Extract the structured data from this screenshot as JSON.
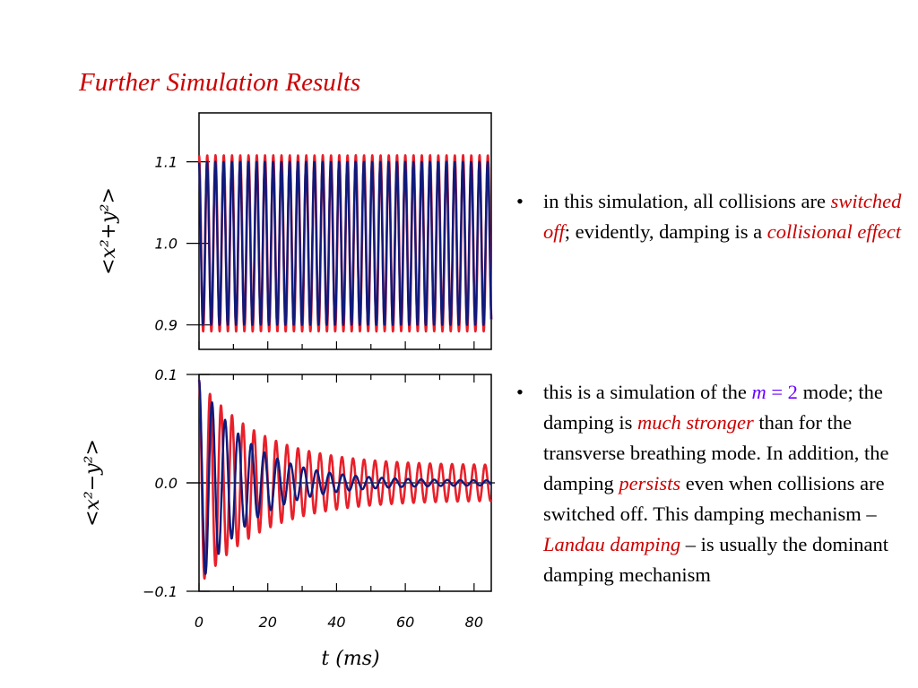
{
  "slide": {
    "title": "Further Simulation Results"
  },
  "bullets": [
    {
      "parts": [
        {
          "text": "in this simulation, all collisions are ",
          "style": "plain"
        },
        {
          "text": "switched off",
          "style": "red-italic"
        },
        {
          "text": "; evidently, damping is a ",
          "style": "plain"
        },
        {
          "text": "collisional effect",
          "style": "red-italic"
        }
      ]
    },
    {
      "parts": [
        {
          "text": "this is a simulation of the ",
          "style": "plain"
        },
        {
          "text": "m",
          "style": "purple-italic"
        },
        {
          "text": " = 2",
          "style": "purple"
        },
        {
          "text": " mode; the damping is ",
          "style": "plain"
        },
        {
          "text": "much stronger",
          "style": "red-italic"
        },
        {
          "text": " than for the transverse breathing mode. In addition, the damping ",
          "style": "plain"
        },
        {
          "text": "persists",
          "style": "red-italic"
        },
        {
          "text": " even when collisions are switched off. This damping mechanism – ",
          "style": "plain"
        },
        {
          "text": "Landau damping",
          "style": "red-italic"
        },
        {
          "text": " – is usually the dominant damping mechanism",
          "style": "plain"
        }
      ]
    }
  ],
  "colors": {
    "title": "#cc0000",
    "emphasis": "#cc0000",
    "mode": "#6a00ff",
    "series_red": "#e8202a",
    "series_blue": "#101a7a"
  },
  "chart_data": [
    {
      "type": "line",
      "title": "",
      "xlabel": "",
      "ylabel": "<x²+y²>",
      "xlim": [
        0,
        85
      ],
      "ylim": [
        0.87,
        1.16
      ],
      "yticks": [
        0.9,
        1.0,
        1.1
      ],
      "ytick_labels": [
        "0.9",
        "1.0",
        "1.1"
      ],
      "series": [
        {
          "color": "#e8202a",
          "model": "sinusoid",
          "offset": 1.0,
          "amplitude": 0.108,
          "period_ms": 2.4,
          "damping_tau_ms": null
        },
        {
          "color": "#101a7a",
          "model": "sinusoid",
          "offset": 1.0,
          "amplitude": 0.1,
          "period_ms": 2.4,
          "damping_tau_ms": null
        }
      ]
    },
    {
      "type": "line",
      "title": "",
      "xlabel": "t (ms)",
      "ylabel": "<x²−y²>",
      "xlim": [
        0,
        85
      ],
      "ylim": [
        -0.1,
        0.1
      ],
      "xticks": [
        0,
        20,
        40,
        60,
        80
      ],
      "xtick_labels": [
        "0",
        "20",
        "40",
        "60",
        "80"
      ],
      "yticks": [
        -0.1,
        0.0,
        0.1
      ],
      "ytick_labels": [
        "−0.1",
        "0.0",
        "0.1"
      ],
      "series": [
        {
          "color": "#e8202a",
          "model": "damped_sinusoid",
          "offset": 0.0,
          "amplitude": 0.095,
          "period_ms": 3.2,
          "floor_amplitude": 0.016,
          "damping_tau_ms": 18
        },
        {
          "color": "#101a7a",
          "model": "damped_sinusoid",
          "offset": 0.0,
          "amplitude": 0.095,
          "period_ms": 3.8,
          "floor_amplitude": 0.002,
          "damping_tau_ms": 15
        }
      ]
    }
  ]
}
